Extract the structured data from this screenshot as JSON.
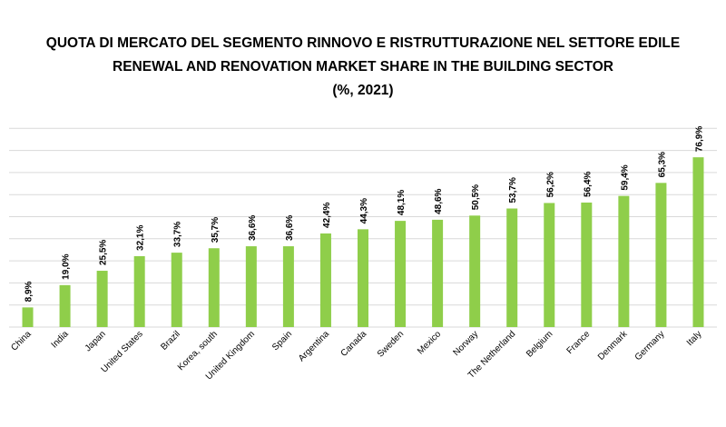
{
  "chart_data": {
    "type": "bar",
    "title": "QUOTA DI MERCATO DEL SEGMENTO RINNOVO E RISTRUTTURAZIONE NEL SETTORE EDILE",
    "subtitle": "RENEWAL AND RENOVATION MARKET SHARE IN THE BUILDING SECTOR",
    "unit_label": "(%, 2021)",
    "categories": [
      "China",
      "India",
      "Japan",
      "United States",
      "Brazil",
      "Korea, south",
      "United Kingdom",
      "Spain",
      "Argentina",
      "Canada",
      "Sweden",
      "Mexico",
      "Norway",
      "The Netherland",
      "Belgium",
      "France",
      "Denmark",
      "Germany",
      "Italy"
    ],
    "values": [
      8.9,
      19.0,
      25.5,
      32.1,
      33.7,
      35.7,
      36.6,
      36.6,
      42.4,
      44.3,
      48.1,
      48.6,
      50.5,
      53.7,
      56.2,
      56.4,
      59.4,
      65.3,
      76.9
    ],
    "data_labels": [
      "8,9%",
      "19,0%",
      "25,5%",
      "32,1%",
      "33,7%",
      "35,7%",
      "36,6%",
      "36,6%",
      "42,4%",
      "44,3%",
      "48,1%",
      "48,6%",
      "50,5%",
      "53,7%",
      "56,2%",
      "56,4%",
      "59,4%",
      "65,3%",
      "76,9%"
    ],
    "ylim": [
      0,
      90
    ],
    "grid": true,
    "bar_color": "#8fce4a",
    "grid_color": "#d9d9d9"
  }
}
